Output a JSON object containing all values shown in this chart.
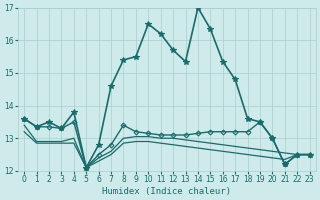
{
  "xlabel": "Humidex (Indice chaleur)",
  "xlim": [
    -0.5,
    23.5
  ],
  "ylim": [
    12,
    17
  ],
  "yticks": [
    12,
    13,
    14,
    15,
    16,
    17
  ],
  "xticks": [
    0,
    1,
    2,
    3,
    4,
    5,
    6,
    7,
    8,
    9,
    10,
    11,
    12,
    13,
    14,
    15,
    16,
    17,
    18,
    19,
    20,
    21,
    22,
    23
  ],
  "bg_color": "#ceeaea",
  "grid_color": "#aacece",
  "line_color": "#1a6b6b",
  "lines": [
    {
      "x": [
        0,
        1,
        2,
        3,
        4,
        5,
        6,
        7,
        8,
        9,
        10,
        11,
        12,
        13,
        14,
        15,
        16,
        17,
        18,
        19,
        20,
        21,
        22,
        23
      ],
      "y": [
        13.6,
        13.35,
        13.5,
        13.3,
        13.8,
        12.1,
        12.8,
        14.6,
        15.4,
        15.5,
        16.5,
        16.2,
        15.7,
        15.35,
        17.0,
        16.35,
        15.35,
        14.8,
        13.6,
        13.5,
        13.0,
        12.2,
        12.5,
        12.5
      ],
      "marker": "*",
      "markersize": 4,
      "linewidth": 1.2
    },
    {
      "x": [
        0,
        1,
        2,
        3,
        4,
        5,
        6,
        7,
        8,
        9,
        10,
        11,
        12,
        13,
        14,
        15,
        16,
        17,
        18,
        19,
        20,
        21,
        22,
        23
      ],
      "y": [
        13.6,
        13.35,
        13.35,
        13.3,
        13.5,
        12.1,
        12.5,
        12.8,
        13.4,
        13.2,
        13.15,
        13.1,
        13.1,
        13.1,
        13.15,
        13.2,
        13.2,
        13.2,
        13.2,
        13.5,
        13.0,
        12.2,
        12.5,
        12.5
      ],
      "marker": "D",
      "markersize": 2.5,
      "linewidth": 1.0
    },
    {
      "x": [
        0,
        1,
        2,
        3,
        4,
        5,
        6,
        7,
        8,
        9,
        10,
        11,
        12,
        13,
        14,
        15,
        16,
        17,
        18,
        19,
        20,
        21,
        22,
        23
      ],
      "y": [
        13.4,
        12.9,
        12.9,
        12.9,
        13.0,
        12.1,
        12.4,
        12.6,
        13.0,
        13.05,
        13.05,
        13.0,
        13.0,
        12.95,
        12.9,
        12.85,
        12.8,
        12.75,
        12.7,
        12.65,
        12.6,
        12.55,
        12.5,
        12.5
      ],
      "marker": null,
      "markersize": 0,
      "linewidth": 0.9
    },
    {
      "x": [
        0,
        1,
        2,
        3,
        4,
        5,
        6,
        7,
        8,
        9,
        10,
        11,
        12,
        13,
        14,
        15,
        16,
        17,
        18,
        19,
        20,
        21,
        22,
        23
      ],
      "y": [
        13.2,
        12.85,
        12.85,
        12.85,
        12.85,
        12.1,
        12.3,
        12.5,
        12.85,
        12.9,
        12.9,
        12.85,
        12.8,
        12.75,
        12.7,
        12.65,
        12.6,
        12.55,
        12.5,
        12.45,
        12.4,
        12.35,
        12.5,
        12.5
      ],
      "marker": null,
      "markersize": 0,
      "linewidth": 0.9
    }
  ]
}
